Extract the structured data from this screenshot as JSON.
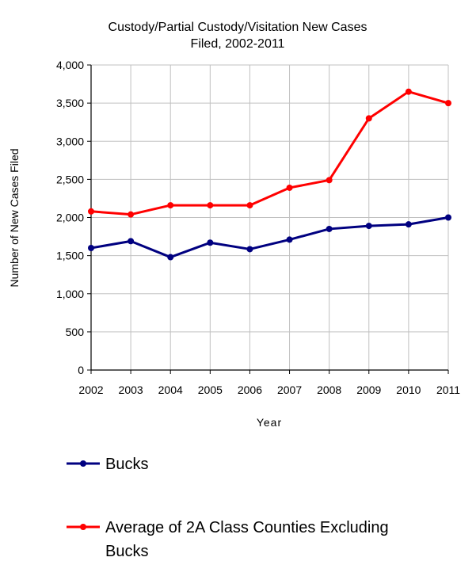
{
  "chart_data": {
    "type": "line",
    "title": "Custody/Partial Custody/Visitation New  Cases Filed, 2002-2011",
    "title_lines": [
      "Custody/Partial Custody/Visitation New  Cases",
      "Filed, 2002-2011"
    ],
    "xlabel": "Year",
    "ylabel": "Number of New Cases Filed",
    "categories": [
      "2002",
      "2003",
      "2004",
      "2005",
      "2006",
      "2007",
      "2008",
      "2009",
      "2010",
      "2011"
    ],
    "ylim": [
      0,
      4000
    ],
    "yticks": [
      0,
      500,
      1000,
      1500,
      2000,
      2500,
      3000,
      3500,
      4000
    ],
    "ytick_labels": [
      "0",
      "500",
      "1,000",
      "1,500",
      "2,000",
      "2,500",
      "3,000",
      "3,500",
      "4,000"
    ],
    "grid": true,
    "legend_position": "bottom",
    "series": [
      {
        "name": "Bucks",
        "color": "#000080",
        "values": [
          1600,
          1690,
          1480,
          1670,
          1585,
          1710,
          1850,
          1890,
          1910,
          2000
        ]
      },
      {
        "name": "Average of 2A Class Counties Excluding Bucks",
        "name_lines": [
          "Average of 2A Class Counties Excluding",
          "Bucks"
        ],
        "color": "#ff0000",
        "values": [
          2080,
          2040,
          2160,
          2160,
          2160,
          2390,
          2490,
          3300,
          3650,
          3500
        ]
      }
    ]
  }
}
